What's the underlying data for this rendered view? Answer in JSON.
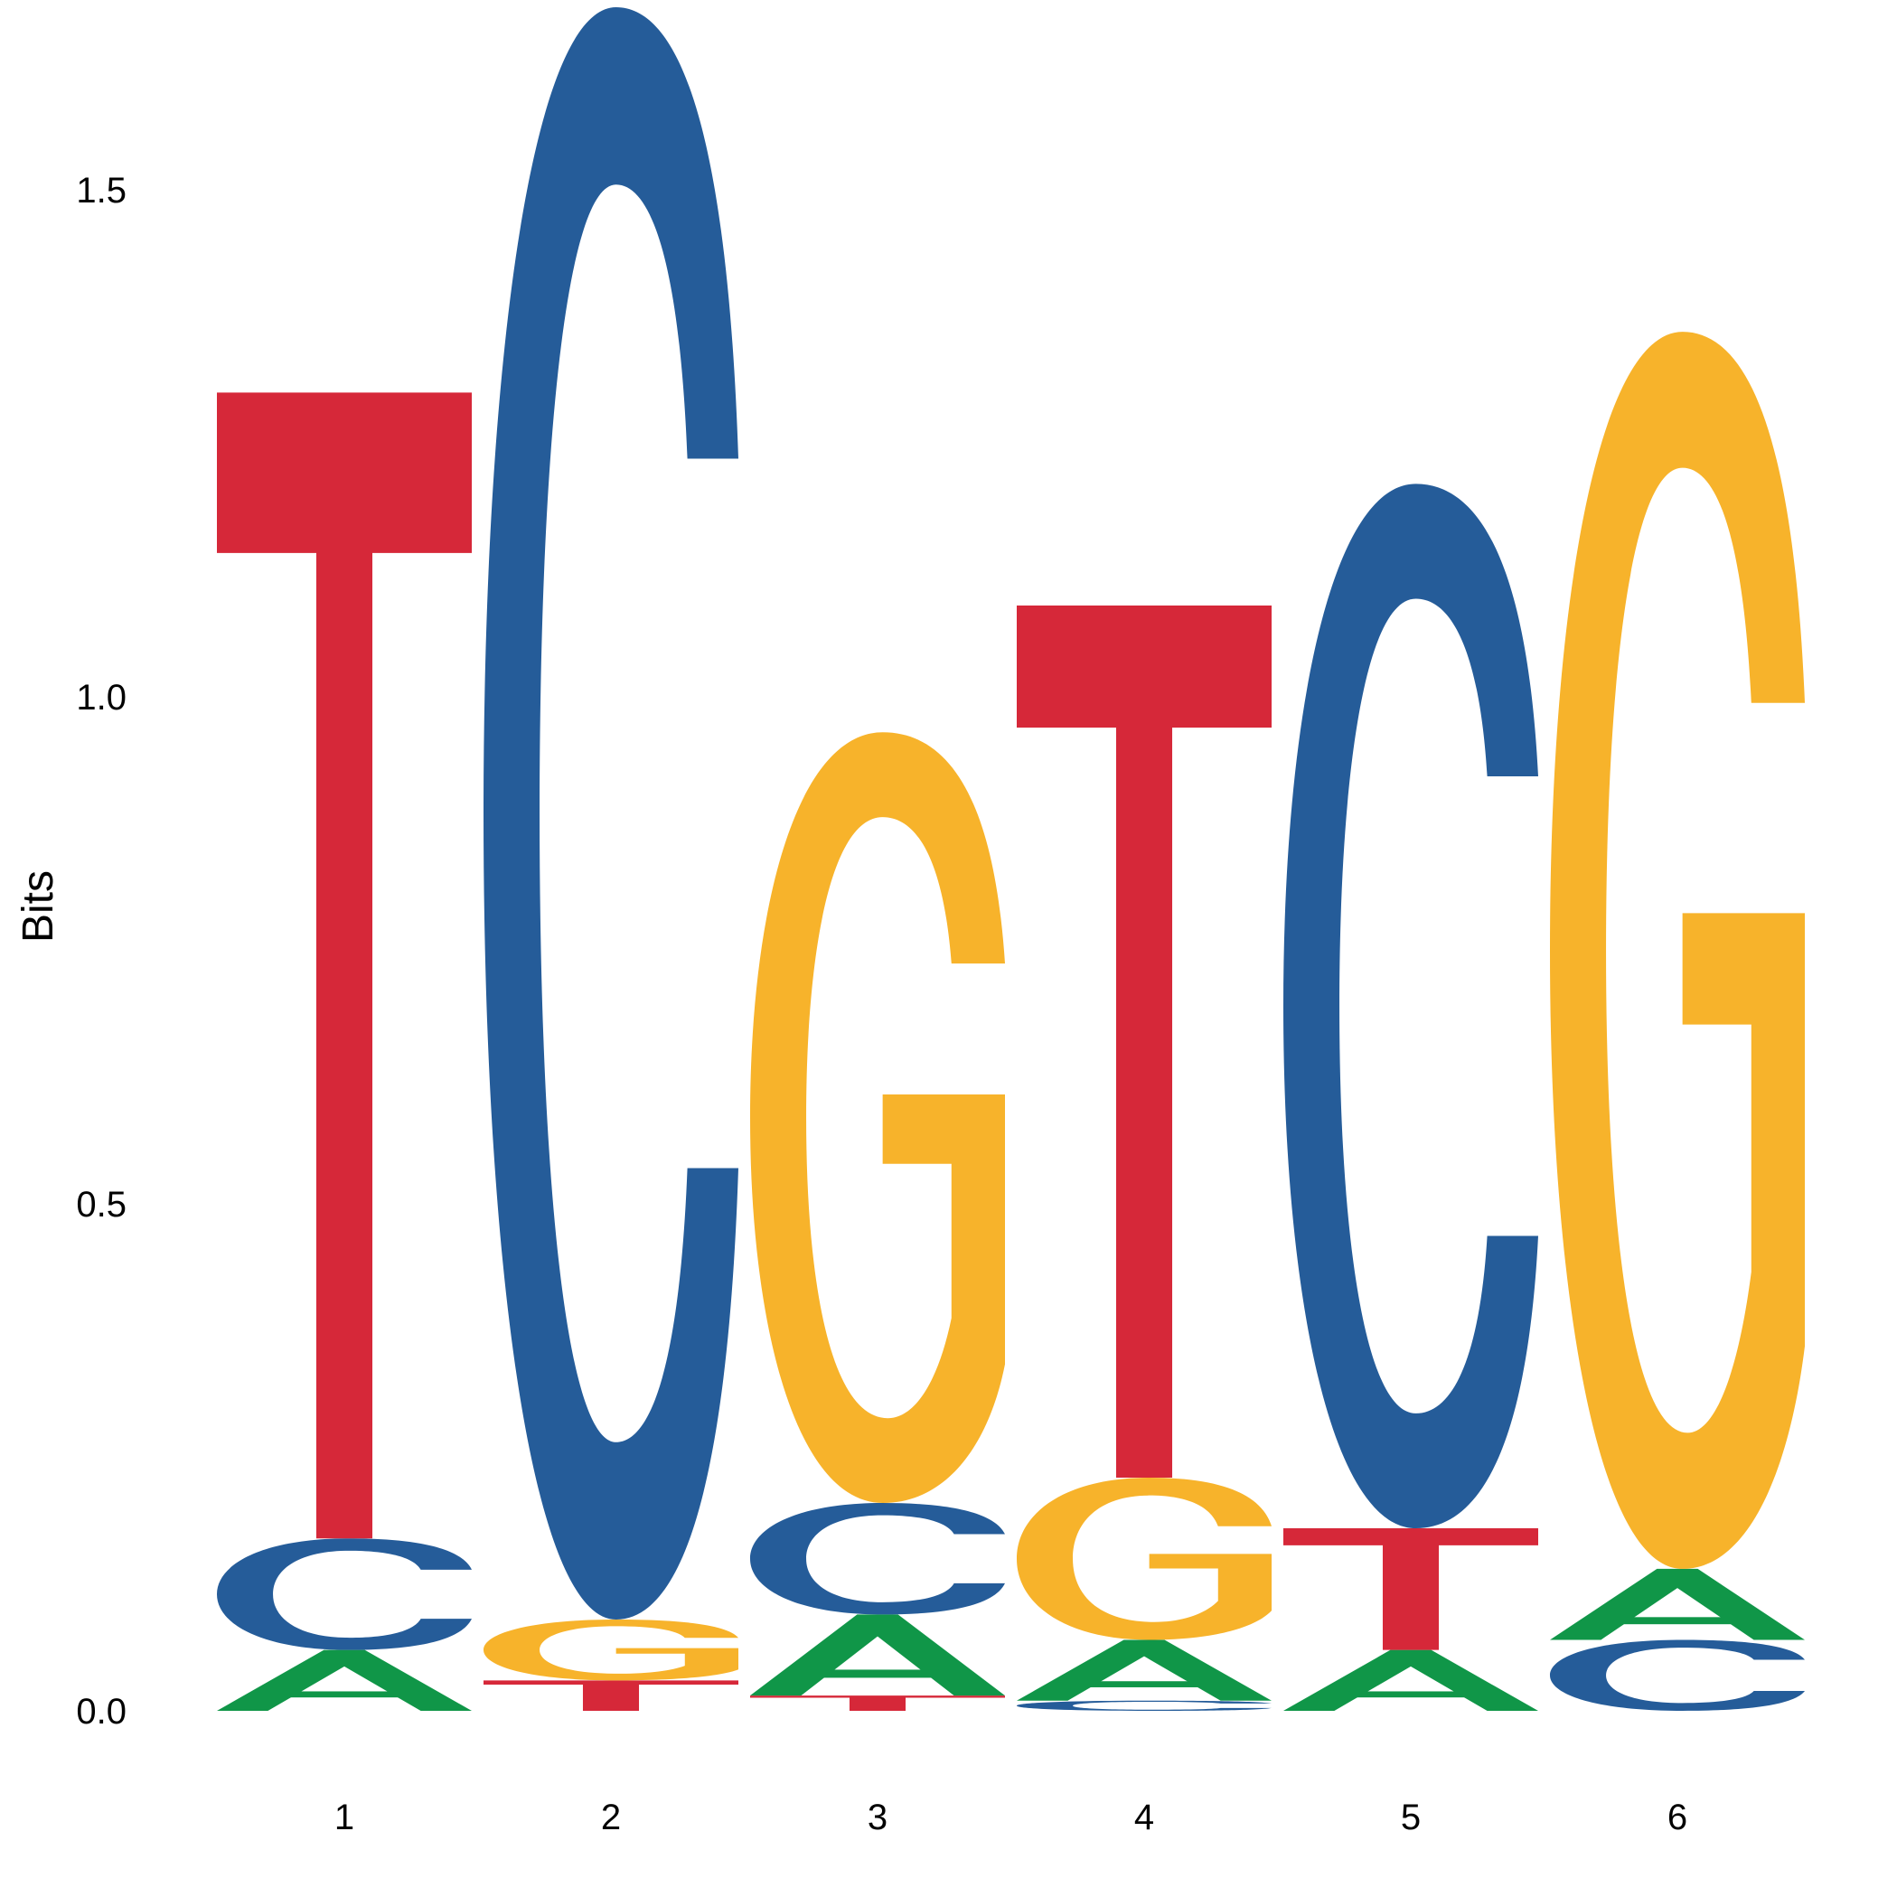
{
  "chart_data": {
    "type": "sequence-logo",
    "ylabel": "Bits",
    "ylim": [
      0,
      1.65
    ],
    "yticks": [
      "0.0",
      "0.5",
      "1.0",
      "1.5"
    ],
    "ytick_values": [
      0,
      0.5,
      1.0,
      1.5
    ],
    "positions": [
      "1",
      "2",
      "3",
      "4",
      "5",
      "6"
    ],
    "colors": {
      "A": "#109648",
      "C": "#255C99",
      "G": "#F7B32B",
      "T": "#D62839"
    },
    "stacks": [
      {
        "position": "1",
        "letters": [
          {
            "letter": "A",
            "bits": 0.06
          },
          {
            "letter": "C",
            "bits": 0.11
          },
          {
            "letter": "T",
            "bits": 1.13
          }
        ]
      },
      {
        "position": "2",
        "letters": [
          {
            "letter": "T",
            "bits": 0.03
          },
          {
            "letter": "G",
            "bits": 0.06
          },
          {
            "letter": "C",
            "bits": 1.59
          }
        ]
      },
      {
        "position": "3",
        "letters": [
          {
            "letter": "T",
            "bits": 0.015
          },
          {
            "letter": "A",
            "bits": 0.08
          },
          {
            "letter": "C",
            "bits": 0.11
          },
          {
            "letter": "G",
            "bits": 0.76
          }
        ]
      },
      {
        "position": "4",
        "letters": [
          {
            "letter": "C",
            "bits": 0.01
          },
          {
            "letter": "A",
            "bits": 0.06
          },
          {
            "letter": "G",
            "bits": 0.16
          },
          {
            "letter": "T",
            "bits": 0.86
          }
        ]
      },
      {
        "position": "5",
        "letters": [
          {
            "letter": "A",
            "bits": 0.06
          },
          {
            "letter": "T",
            "bits": 0.12
          },
          {
            "letter": "C",
            "bits": 1.03
          }
        ]
      },
      {
        "position": "6",
        "letters": [
          {
            "letter": "C",
            "bits": 0.07
          },
          {
            "letter": "A",
            "bits": 0.07
          },
          {
            "letter": "G",
            "bits": 1.22
          }
        ]
      }
    ]
  }
}
